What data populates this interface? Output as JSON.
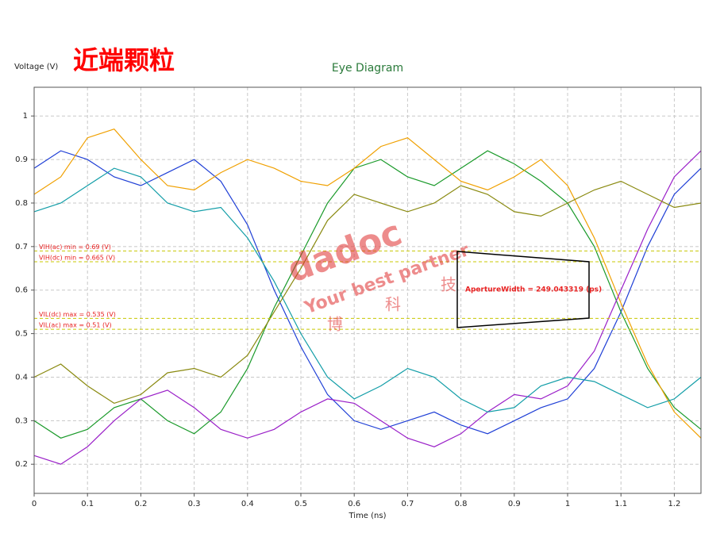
{
  "chart_data": {
    "type": "line",
    "title": "近端颗粒",
    "subtitle": "Eye Diagram",
    "y_label": "Voltage (V)",
    "x_label": "Time (ns)",
    "xlim": [
      0,
      1.25
    ],
    "ylim": [
      0.133,
      1.066
    ],
    "xticks": [
      0,
      0.1,
      0.2,
      0.3,
      0.4,
      0.5,
      0.6,
      0.7,
      0.8,
      0.9,
      1,
      1.1,
      1.2
    ],
    "yticks": [
      0.2,
      0.3,
      0.4,
      0.5,
      0.6,
      0.7,
      0.8,
      0.9,
      1
    ],
    "grid": true,
    "x": [
      0,
      0.05,
      0.1,
      0.15,
      0.2,
      0.25,
      0.3,
      0.35,
      0.4,
      0.45,
      0.5,
      0.55,
      0.6,
      0.65,
      0.7,
      0.75,
      0.8,
      0.85,
      0.9,
      0.95,
      1,
      1.05,
      1.1,
      1.15,
      1.2,
      1.25
    ],
    "series": [
      {
        "color": "#1f3fd6",
        "values": [
          0.88,
          0.92,
          0.9,
          0.86,
          0.84,
          0.87,
          0.9,
          0.85,
          0.75,
          0.6,
          0.47,
          0.36,
          0.3,
          0.28,
          0.3,
          0.32,
          0.29,
          0.27,
          0.3,
          0.33,
          0.35,
          0.42,
          0.55,
          0.7,
          0.82,
          0.88
        ]
      },
      {
        "color": "#1a9a2a",
        "values": [
          0.3,
          0.26,
          0.28,
          0.33,
          0.35,
          0.3,
          0.27,
          0.32,
          0.42,
          0.56,
          0.68,
          0.8,
          0.88,
          0.9,
          0.86,
          0.84,
          0.88,
          0.92,
          0.89,
          0.85,
          0.8,
          0.7,
          0.55,
          0.42,
          0.33,
          0.28
        ]
      },
      {
        "color": "#f0a000",
        "values": [
          0.82,
          0.86,
          0.95,
          0.97,
          0.9,
          0.84,
          0.83,
          0.87,
          0.9,
          0.88,
          0.85,
          0.84,
          0.88,
          0.93,
          0.95,
          0.9,
          0.85,
          0.83,
          0.86,
          0.9,
          0.84,
          0.72,
          0.57,
          0.43,
          0.32,
          0.26
        ]
      },
      {
        "color": "#9a1fc8",
        "values": [
          0.22,
          0.2,
          0.24,
          0.3,
          0.35,
          0.37,
          0.33,
          0.28,
          0.26,
          0.28,
          0.32,
          0.35,
          0.34,
          0.3,
          0.26,
          0.24,
          0.27,
          0.32,
          0.36,
          0.35,
          0.38,
          0.46,
          0.6,
          0.74,
          0.86,
          0.92
        ]
      },
      {
        "color": "#139ea8",
        "values": [
          0.78,
          0.8,
          0.84,
          0.88,
          0.86,
          0.8,
          0.78,
          0.79,
          0.72,
          0.62,
          0.5,
          0.4,
          0.35,
          0.38,
          0.42,
          0.4,
          0.35,
          0.32,
          0.33,
          0.38,
          0.4,
          0.39,
          0.36,
          0.33,
          0.35,
          0.4
        ]
      },
      {
        "color": "#8a8a10",
        "values": [
          0.4,
          0.43,
          0.38,
          0.34,
          0.36,
          0.41,
          0.42,
          0.4,
          0.45,
          0.55,
          0.65,
          0.76,
          0.82,
          0.8,
          0.78,
          0.8,
          0.84,
          0.82,
          0.78,
          0.77,
          0.8,
          0.83,
          0.85,
          0.82,
          0.79,
          0.8
        ]
      }
    ],
    "thresholds": [
      {
        "label": "VIH(ac) min = 0.69 (V)",
        "value": 0.69
      },
      {
        "label": "VIH(dc) min = 0.665 (V)",
        "value": 0.665
      },
      {
        "label": "VIL(dc) max = 0.535 (V)",
        "value": 0.535
      },
      {
        "label": "VIL(ac) max = 0.51 (V)",
        "value": 0.51
      }
    ],
    "threshold_color": "#c8c800",
    "annotation": "ApertureWidth = 249.043319 (ps)",
    "watermark": [
      "dadoc",
      "Your best partner",
      "博",
      "科",
      "技"
    ]
  }
}
